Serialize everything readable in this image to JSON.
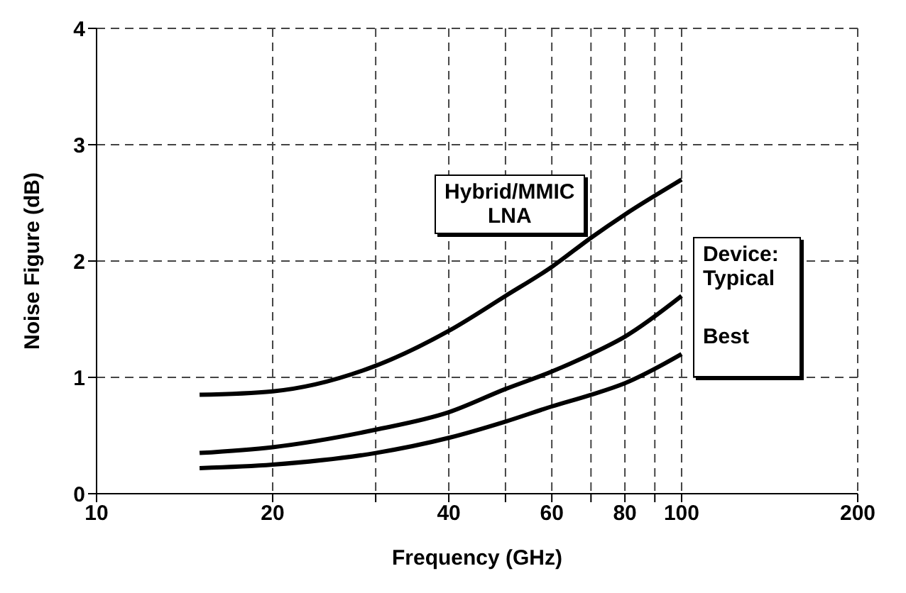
{
  "chart_data": {
    "type": "line",
    "xlabel": "Frequency (GHz)",
    "ylabel": "Noise Figure (dB)",
    "x": [
      15,
      20,
      30,
      40,
      50,
      60,
      70,
      80,
      100
    ],
    "series": [
      {
        "name": "Hybrid/MMIC LNA",
        "color": "#000000",
        "values": [
          0.85,
          0.88,
          1.1,
          1.4,
          1.7,
          1.95,
          2.2,
          2.4,
          2.7
        ]
      },
      {
        "name": "Typical",
        "color": "#000000",
        "values": [
          0.35,
          0.4,
          0.55,
          0.7,
          0.9,
          1.05,
          1.2,
          1.35,
          1.7
        ]
      },
      {
        "name": "Best",
        "color": "#000000",
        "values": [
          0.22,
          0.25,
          0.35,
          0.48,
          0.62,
          0.75,
          0.85,
          0.95,
          1.2
        ]
      }
    ],
    "annotations": [
      "Device:"
    ],
    "log": "x",
    "xlim": [
      10,
      200
    ],
    "xticks": [
      10,
      20,
      {
        "value": 30,
        "label": null
      },
      40,
      {
        "value": 50,
        "label": null
      },
      60,
      {
        "value": 70,
        "label": null
      },
      80,
      {
        "value": 90,
        "label": null
      },
      100,
      200
    ],
    "ylim": [
      0,
      4
    ],
    "yticks": [
      0,
      1,
      2,
      3,
      4
    ],
    "grid": true,
    "legend": false,
    "marker": "none",
    "line_style": "solid"
  }
}
